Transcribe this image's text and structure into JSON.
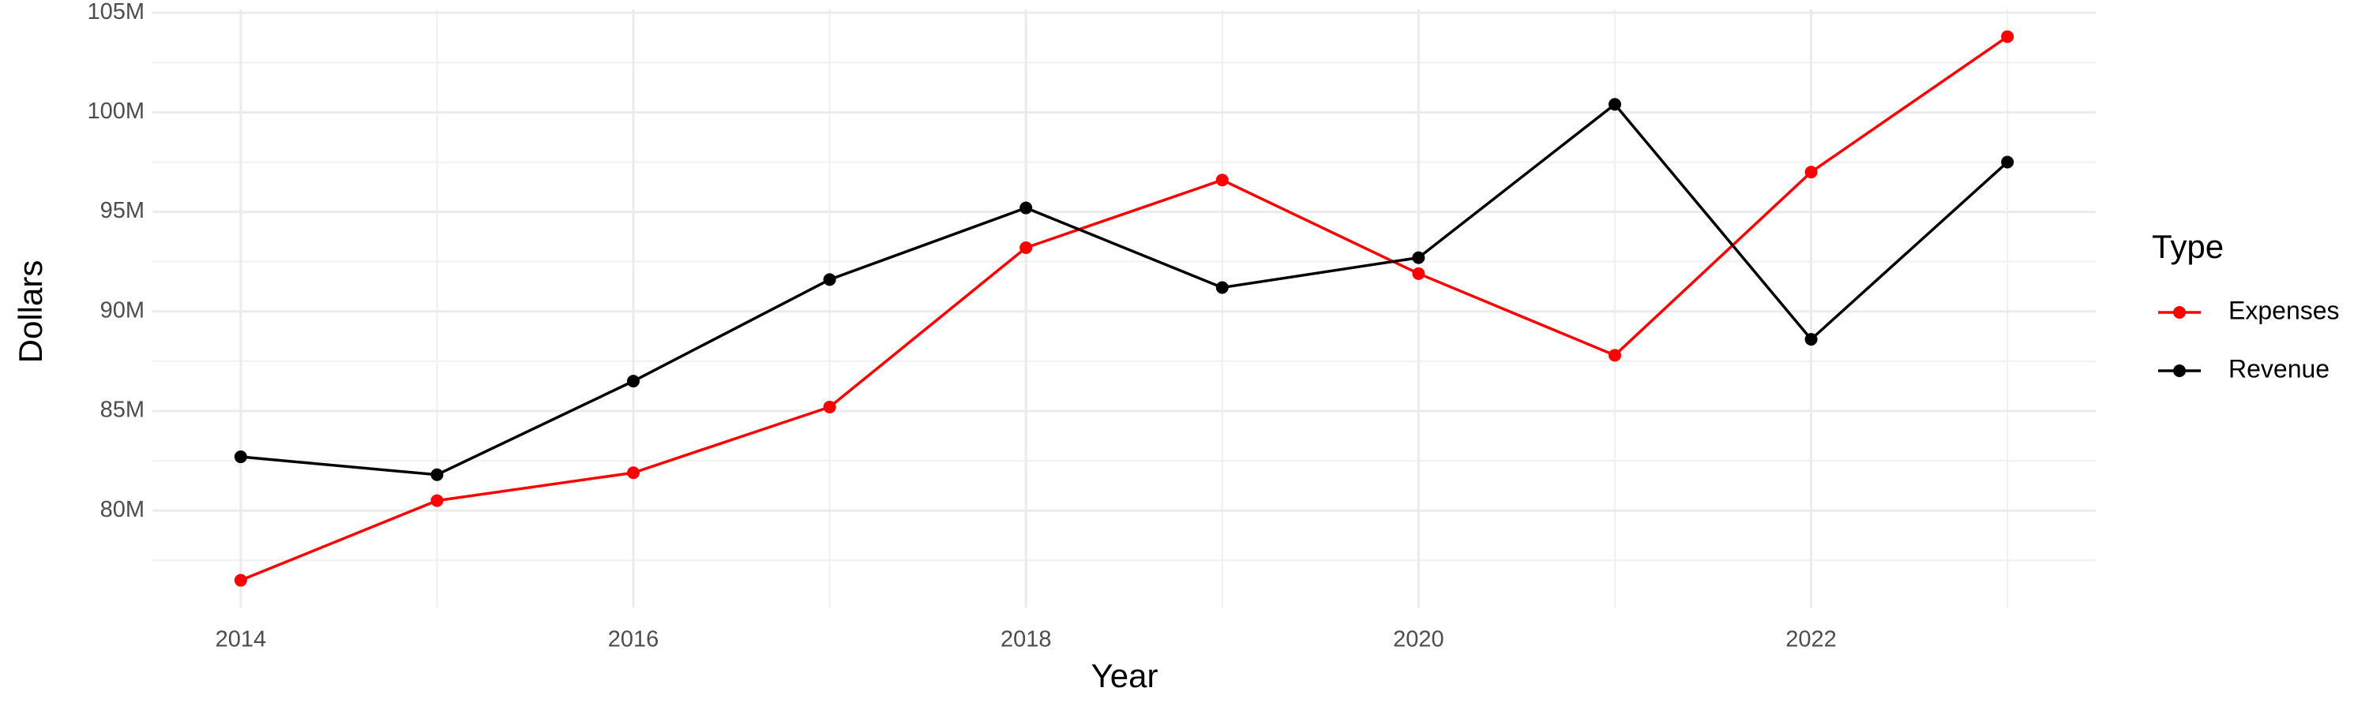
{
  "chart_data": {
    "type": "line",
    "x_label": "Year",
    "y_label": "Dollars",
    "legend_title": "Type",
    "legend_position": "right",
    "grid": true,
    "x": [
      2014,
      2015,
      2016,
      2017,
      2018,
      2019,
      2020,
      2021,
      2022,
      2023
    ],
    "series": [
      {
        "name": "Expenses",
        "color": "#ff0000",
        "values": [
          76500000,
          80500000,
          81900000,
          85200000,
          93200000,
          96600000,
          91900000,
          87800000,
          97000000,
          103800000
        ]
      },
      {
        "name": "Revenue",
        "color": "#000000",
        "values": [
          82700000,
          81800000,
          86500000,
          91600000,
          95200000,
          91200000,
          92700000,
          100400000,
          88600000,
          97500000
        ]
      }
    ],
    "xlim": [
      2013.55,
      2023.45
    ],
    "xticks": [
      2014,
      2016,
      2018,
      2020,
      2022
    ],
    "ylim": [
      75135000,
      105165000
    ],
    "yticks": [
      {
        "value": 80000000,
        "label": "80M"
      },
      {
        "value": 85000000,
        "label": "85M"
      },
      {
        "value": 90000000,
        "label": "90M"
      },
      {
        "value": 95000000,
        "label": "95M"
      },
      {
        "value": 100000000,
        "label": "100M"
      },
      {
        "value": 105000000,
        "label": "105M"
      }
    ]
  }
}
